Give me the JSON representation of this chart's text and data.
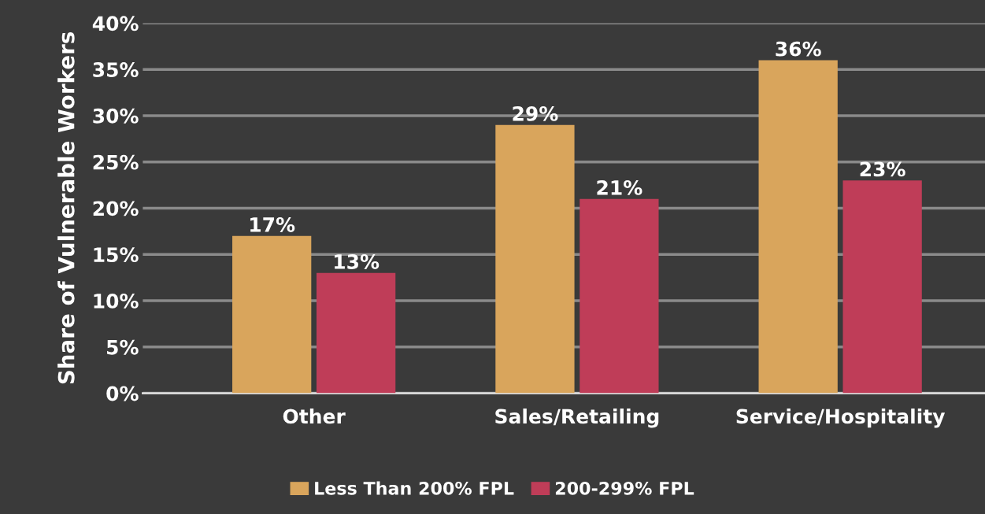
{
  "chart_data": {
    "type": "bar",
    "ylabel": "Share of Vulnerable Workers",
    "categories": [
      "Other",
      "Sales/Retailing",
      "Service/Hospitality"
    ],
    "series": [
      {
        "name": "Less Than 200% FPL",
        "color": "#d9a55c",
        "values": [
          17,
          29,
          36
        ]
      },
      {
        "name": "200-299% FPL",
        "color": "#bf3d58",
        "values": [
          13,
          21,
          23
        ]
      }
    ],
    "ylim": [
      0,
      40
    ],
    "yticks": [
      {
        "value": 0,
        "label": "0%"
      },
      {
        "value": 5,
        "label": "5%"
      },
      {
        "value": 10,
        "label": "10%"
      },
      {
        "value": 15,
        "label": "15%"
      },
      {
        "value": 20,
        "label": "20%"
      },
      {
        "value": 25,
        "label": "25%"
      },
      {
        "value": 30,
        "label": "30%"
      },
      {
        "value": 35,
        "label": "35%"
      },
      {
        "value": 40,
        "label": "40%"
      }
    ],
    "value_labels": [
      [
        "17%",
        "29%",
        "36%"
      ],
      [
        "13%",
        "21%",
        "23%"
      ]
    ],
    "grid": "y",
    "legend": "bottom"
  }
}
